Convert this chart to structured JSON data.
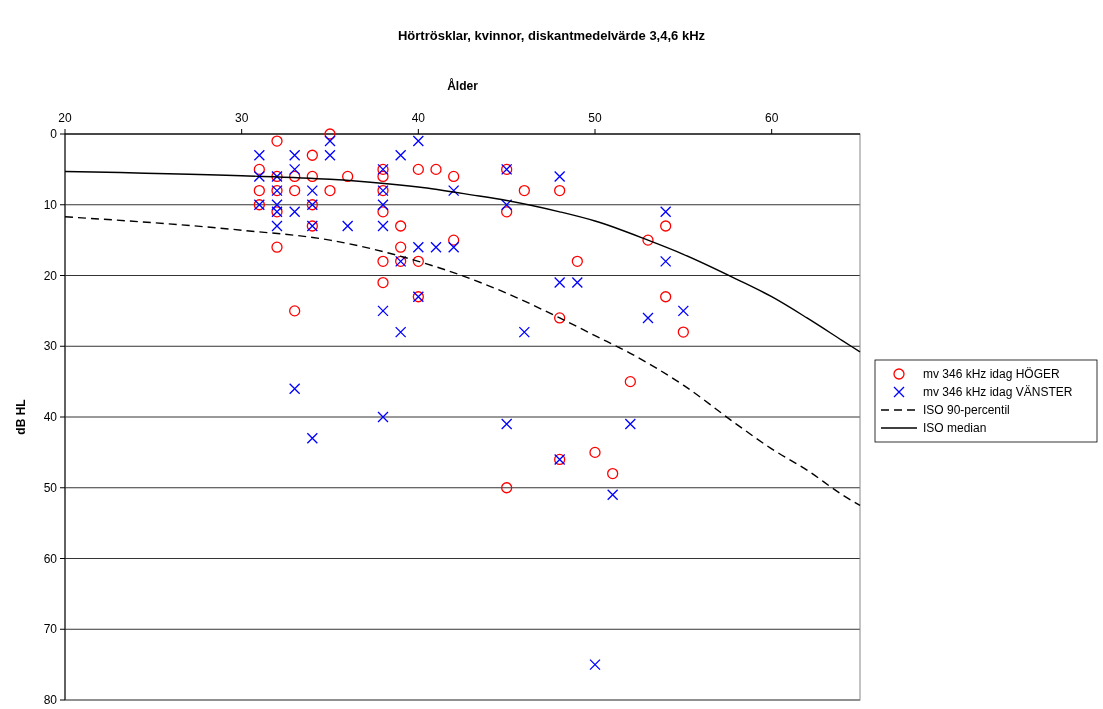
{
  "chart_data": {
    "type": "scatter",
    "title": "Hörtrösklar, kvinnor, diskantmedelvärde 3,4,6 kHz",
    "xlabel": "Ålder",
    "ylabel": "dB HL",
    "xlim": [
      20,
      65
    ],
    "xticks": [
      20,
      30,
      40,
      50,
      60
    ],
    "ylim": [
      80,
      0
    ],
    "yticks": [
      0,
      10,
      20,
      30,
      40,
      50,
      60,
      70,
      80
    ],
    "grid": "y",
    "legend": "right",
    "series": [
      {
        "name": "mv 346 kHz idag HÖGER",
        "marker": "circle",
        "color": "#ff0000",
        "x": [
          31,
          31,
          31,
          32,
          32,
          32,
          32,
          32,
          33,
          33,
          33,
          34,
          34,
          34,
          34,
          35,
          35,
          36,
          38,
          38,
          38,
          38,
          38,
          38,
          39,
          39,
          39,
          40,
          40,
          40,
          41,
          42,
          42,
          45,
          45,
          45,
          46,
          48,
          48,
          48,
          49,
          50,
          51,
          52,
          53,
          54,
          54,
          55
        ],
        "values": [
          5,
          8,
          10,
          1,
          6,
          8,
          11,
          16,
          6,
          8,
          25,
          3,
          6,
          10,
          13,
          0,
          8,
          6,
          5,
          6,
          8,
          11,
          18,
          21,
          13,
          16,
          18,
          5,
          18,
          23,
          5,
          6,
          15,
          5,
          11,
          50,
          8,
          8,
          26,
          46,
          18,
          45,
          48,
          35,
          15,
          13,
          23,
          28
        ]
      },
      {
        "name": "mv 346 kHz idag VÄNSTER",
        "marker": "cross",
        "color": "#0000ff",
        "x": [
          31,
          31,
          31,
          32,
          32,
          32,
          32,
          32,
          33,
          33,
          33,
          33,
          34,
          34,
          34,
          34,
          35,
          35,
          36,
          38,
          38,
          38,
          38,
          38,
          38,
          39,
          39,
          39,
          40,
          40,
          40,
          41,
          42,
          42,
          45,
          45,
          45,
          46,
          48,
          48,
          48,
          49,
          50,
          51,
          52,
          53,
          54,
          54,
          55
        ],
        "values": [
          3,
          6,
          10,
          6,
          8,
          10,
          11,
          13,
          3,
          5,
          11,
          36,
          8,
          10,
          13,
          43,
          1,
          3,
          13,
          5,
          8,
          10,
          13,
          25,
          40,
          3,
          18,
          28,
          1,
          16,
          23,
          16,
          8,
          16,
          5,
          10,
          41,
          28,
          6,
          21,
          46,
          21,
          75,
          51,
          41,
          26,
          11,
          18,
          25
        ]
      },
      {
        "name": "ISO 90-percentil",
        "type": "line",
        "marker": "none",
        "line_style": "dashed",
        "color": "#000000",
        "x": [
          20,
          30,
          35,
          40,
          43,
          45,
          48,
          50,
          52,
          55,
          58,
          60,
          62,
          64,
          65
        ],
        "values": [
          11.7,
          13.6,
          15,
          18,
          20.5,
          22.5,
          26,
          28.5,
          31,
          35.5,
          41,
          44.5,
          47.5,
          51,
          52.5
        ]
      },
      {
        "name": "ISO median",
        "type": "line",
        "marker": "none",
        "line_style": "solid",
        "color": "#000000",
        "x": [
          20,
          30,
          35,
          40,
          43,
          45,
          48,
          50,
          53,
          55,
          58,
          60,
          62,
          64,
          65
        ],
        "values": [
          5.3,
          5.9,
          6.4,
          7.5,
          8.6,
          9.4,
          11,
          12.3,
          15,
          17,
          20.5,
          23,
          26,
          29.2,
          30.8
        ]
      }
    ]
  }
}
